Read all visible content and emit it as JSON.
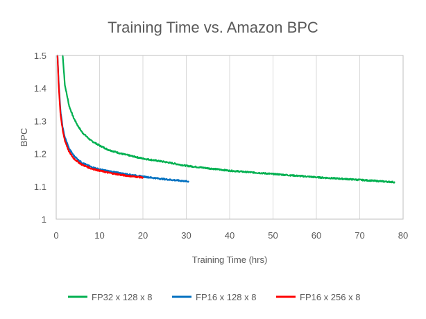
{
  "chart_data": {
    "type": "line",
    "title": "Training Time vs. Amazon BPC",
    "xlabel": "Training Time (hrs)",
    "ylabel": "BPC",
    "xlim": [
      0,
      80
    ],
    "ylim": [
      1,
      1.5
    ],
    "x_ticks": [
      "0",
      "10",
      "20",
      "30",
      "40",
      "50",
      "60",
      "70",
      "80"
    ],
    "y_ticks": [
      "1",
      "1.1",
      "1.2",
      "1.3",
      "1.4",
      "1.5"
    ],
    "grid": "vertical",
    "legend": "bottom",
    "series": [
      {
        "name": "FP32 x 128 x 8",
        "color": "#00b050",
        "x": [
          1.5,
          2,
          3,
          4,
          5,
          6,
          8,
          10,
          12,
          15,
          20,
          25,
          30,
          40,
          50,
          60,
          70,
          78
        ],
        "y": [
          1.5,
          1.41,
          1.345,
          1.31,
          1.285,
          1.265,
          1.24,
          1.225,
          1.212,
          1.2,
          1.185,
          1.175,
          1.163,
          1.148,
          1.138,
          1.128,
          1.12,
          1.113
        ]
      },
      {
        "name": "FP16 x 128 x 8",
        "color": "#0070c0",
        "x": [
          0.3,
          0.6,
          1,
          1.5,
          2,
          3,
          4,
          5,
          6,
          8,
          10,
          12,
          15,
          18,
          20,
          25,
          30.5
        ],
        "y": [
          1.5,
          1.41,
          1.33,
          1.28,
          1.25,
          1.215,
          1.195,
          1.182,
          1.172,
          1.16,
          1.152,
          1.147,
          1.14,
          1.134,
          1.13,
          1.122,
          1.115
        ]
      },
      {
        "name": "FP16 x 256 x 8",
        "color": "#ff0000",
        "x": [
          0.3,
          0.6,
          1,
          1.5,
          2,
          3,
          4,
          5,
          6,
          8,
          10,
          12,
          15,
          18,
          20
        ],
        "y": [
          1.5,
          1.4,
          1.32,
          1.27,
          1.24,
          1.205,
          1.186,
          1.175,
          1.166,
          1.155,
          1.148,
          1.142,
          1.135,
          1.13,
          1.127
        ]
      }
    ]
  }
}
